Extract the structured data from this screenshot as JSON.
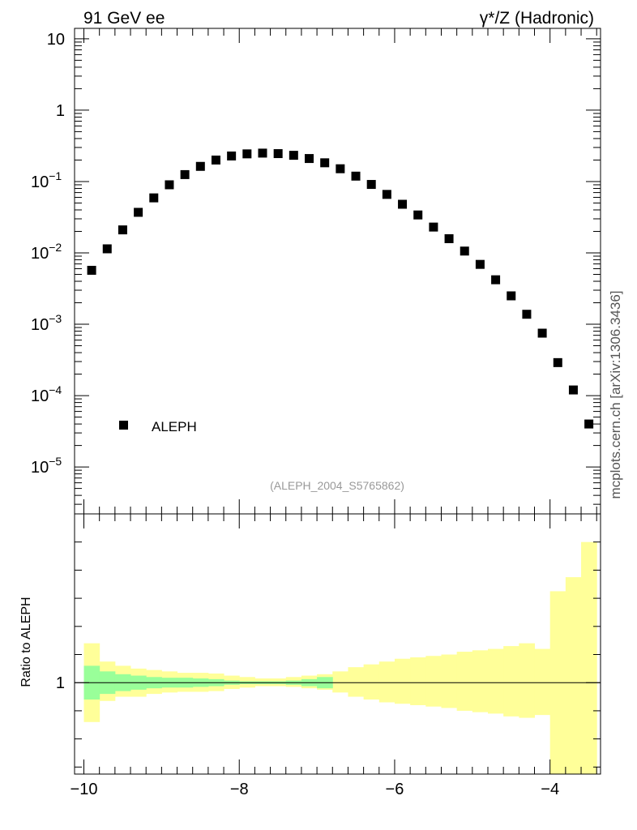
{
  "header": {
    "left_title": "91 GeV ee",
    "right_title": "γ*/Z (Hadronic)",
    "side_label": "mcplots.cern.ch [arXiv:1306.3436]"
  },
  "colors": {
    "marker": "#000000",
    "band_outer": "#ffff99",
    "band_inner": "#99ff99",
    "ref_tag": "#999999"
  },
  "chart_data": [
    {
      "type": "scatter",
      "y_scale": "log",
      "ylim": [
        2.2e-06,
        14
      ],
      "xlim": [
        -10.12,
        -3.35
      ],
      "y_ticks": [
        {
          "value": 10,
          "label": "10"
        },
        {
          "value": 1,
          "label": "1"
        },
        {
          "value": 0.1,
          "label": "10",
          "exp": "−1"
        },
        {
          "value": 0.01,
          "label": "10",
          "exp": "−2"
        },
        {
          "value": 0.001,
          "label": "10",
          "exp": "−3"
        },
        {
          "value": 0.0001,
          "label": "10",
          "exp": "−4"
        },
        {
          "value": 1e-05,
          "label": "10",
          "exp": "−5"
        }
      ],
      "legend": {
        "position": "bottom-left",
        "entries": [
          "ALEPH"
        ]
      },
      "ref_tag": "(ALEPH_2004_S5765862)",
      "series": [
        {
          "name": "ALEPH",
          "x": [
            -9.9,
            -9.7,
            -9.5,
            -9.3,
            -9.1,
            -8.9,
            -8.7,
            -8.5,
            -8.3,
            -8.1,
            -7.9,
            -7.7,
            -7.5,
            -7.3,
            -7.1,
            -6.9,
            -6.7,
            -6.5,
            -6.3,
            -6.1,
            -5.9,
            -5.7,
            -5.5,
            -5.3,
            -5.1,
            -4.9,
            -4.7,
            -4.5,
            -4.3,
            -4.1,
            -3.9,
            -3.7,
            -3.5
          ],
          "y": [
            0.0057,
            0.0114,
            0.021,
            0.037,
            0.059,
            0.09,
            0.125,
            0.163,
            0.2,
            0.228,
            0.244,
            0.25,
            0.246,
            0.233,
            0.21,
            0.183,
            0.151,
            0.119,
            0.091,
            0.066,
            0.048,
            0.034,
            0.023,
            0.0158,
            0.0106,
            0.0069,
            0.0042,
            0.0025,
            0.00138,
            0.00075,
            0.00029,
            0.00012,
            4e-05
          ]
        }
      ]
    },
    {
      "type": "area",
      "ylabel": "Ratio to ALEPH",
      "ylim": [
        0.35,
        2.2
      ],
      "xlim": [
        -10.12,
        -3.35
      ],
      "x_ticks": [
        {
          "value": -10,
          "label": "−10"
        },
        {
          "value": -8,
          "label": "−8"
        },
        {
          "value": -6,
          "label": "−6"
        },
        {
          "value": -4,
          "label": "−4"
        }
      ],
      "y_ticks": [
        {
          "value": 1,
          "label": "1"
        }
      ],
      "bin_edges": [
        -10.0,
        -9.8,
        -9.6,
        -9.4,
        -9.2,
        -9.0,
        -8.8,
        -8.6,
        -8.4,
        -8.2,
        -8.0,
        -7.8,
        -7.6,
        -7.4,
        -7.2,
        -7.0,
        -6.8,
        -6.6,
        -6.4,
        -6.2,
        -6.0,
        -5.8,
        -5.6,
        -5.4,
        -5.2,
        -5.0,
        -4.8,
        -4.6,
        -4.4,
        -4.2,
        -4.0,
        -3.8,
        -3.6,
        -3.4
      ],
      "outer_band": {
        "lo": [
          0.72,
          0.87,
          0.9,
          0.9,
          0.92,
          0.93,
          0.935,
          0.935,
          0.94,
          0.955,
          0.965,
          0.975,
          0.975,
          0.97,
          0.96,
          0.95,
          0.93,
          0.9,
          0.88,
          0.86,
          0.85,
          0.84,
          0.83,
          0.82,
          0.8,
          0.79,
          0.78,
          0.76,
          0.75,
          0.77,
          0.0,
          0.0,
          0.0
        ],
        "hi": [
          1.28,
          1.15,
          1.12,
          1.1,
          1.09,
          1.08,
          1.07,
          1.07,
          1.065,
          1.05,
          1.04,
          1.03,
          1.03,
          1.04,
          1.05,
          1.06,
          1.08,
          1.11,
          1.13,
          1.15,
          1.17,
          1.18,
          1.19,
          1.2,
          1.22,
          1.23,
          1.24,
          1.26,
          1.28,
          1.24,
          1.65,
          1.75,
          2.0
        ]
      },
      "inner_band": {
        "lo": [
          0.88,
          0.92,
          0.94,
          0.95,
          0.96,
          0.965,
          0.965,
          0.97,
          0.975,
          0.985,
          0.99,
          0.99,
          0.99,
          0.985,
          0.975,
          0.96
        ],
        "hi": [
          1.12,
          1.08,
          1.06,
          1.05,
          1.04,
          1.035,
          1.035,
          1.03,
          1.025,
          1.015,
          1.01,
          1.01,
          1.01,
          1.015,
          1.025,
          1.04
        ]
      }
    }
  ]
}
